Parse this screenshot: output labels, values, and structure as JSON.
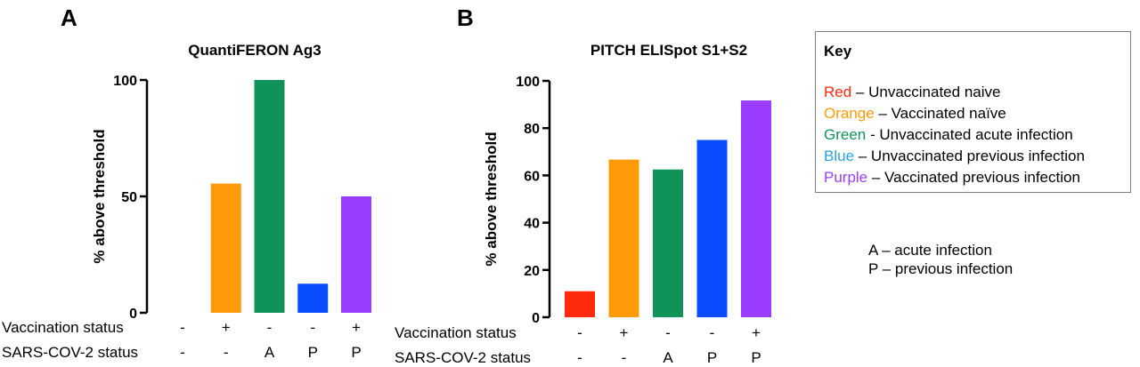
{
  "panel_labels": [
    "A",
    "B"
  ],
  "rows": {
    "vaccination_label": "Vaccination status",
    "sars_label": "SARS-COV-2 status"
  },
  "chart_data": [
    {
      "type": "bar",
      "title": "QuantiFERON Ag3",
      "ylabel": "% above threshold",
      "ylim": [
        0,
        100
      ],
      "yticks": [
        0,
        50,
        100
      ],
      "categories": [
        "Red",
        "Orange",
        "Green",
        "Blue",
        "Purple"
      ],
      "vaccination": [
        "-",
        "+",
        "-",
        "-",
        "+"
      ],
      "sars_cov_2": [
        "-",
        "-",
        "A",
        "P",
        "P"
      ],
      "values": [
        0,
        55.5,
        100,
        12.5,
        50
      ],
      "colors": [
        "#ff2a0e",
        "#ff9a08",
        "#109358",
        "#0a4cff",
        "#9b3dff"
      ]
    },
    {
      "type": "bar",
      "title": "PITCH ELISpot S1+S2",
      "ylabel": "% above threshold",
      "ylim": [
        0,
        100
      ],
      "yticks": [
        0,
        20,
        40,
        60,
        80,
        100
      ],
      "categories": [
        "Red",
        "Orange",
        "Green",
        "Blue",
        "Purple"
      ],
      "vaccination": [
        "-",
        "+",
        "-",
        "-",
        "+"
      ],
      "sars_cov_2": [
        "-",
        "-",
        "A",
        "P",
        "P"
      ],
      "values": [
        11,
        66.7,
        62.5,
        75,
        91.7
      ],
      "colors": [
        "#ff2a0e",
        "#ff9a08",
        "#109358",
        "#0a4cff",
        "#9b3dff"
      ]
    }
  ],
  "key": {
    "title": "Key",
    "entries": [
      {
        "color_word": "Red",
        "desc": " – Unvaccinated naive",
        "color": "#ff2a0e"
      },
      {
        "color_word": "Orange",
        "desc": " – Vaccinated naïve",
        "color": "#ff9a08"
      },
      {
        "color_word": "Green",
        "desc": " - Unvaccinated acute infection",
        "color": "#109358"
      },
      {
        "color_word": "Blue",
        "desc": " – Unvaccinated previous infection",
        "color": "#2aa1e0"
      },
      {
        "color_word": "Purple",
        "desc": " – Vaccinated previous infection",
        "color": "#9b3dff"
      }
    ]
  },
  "abbreviations": [
    "A – acute infection",
    "P – previous infection"
  ]
}
